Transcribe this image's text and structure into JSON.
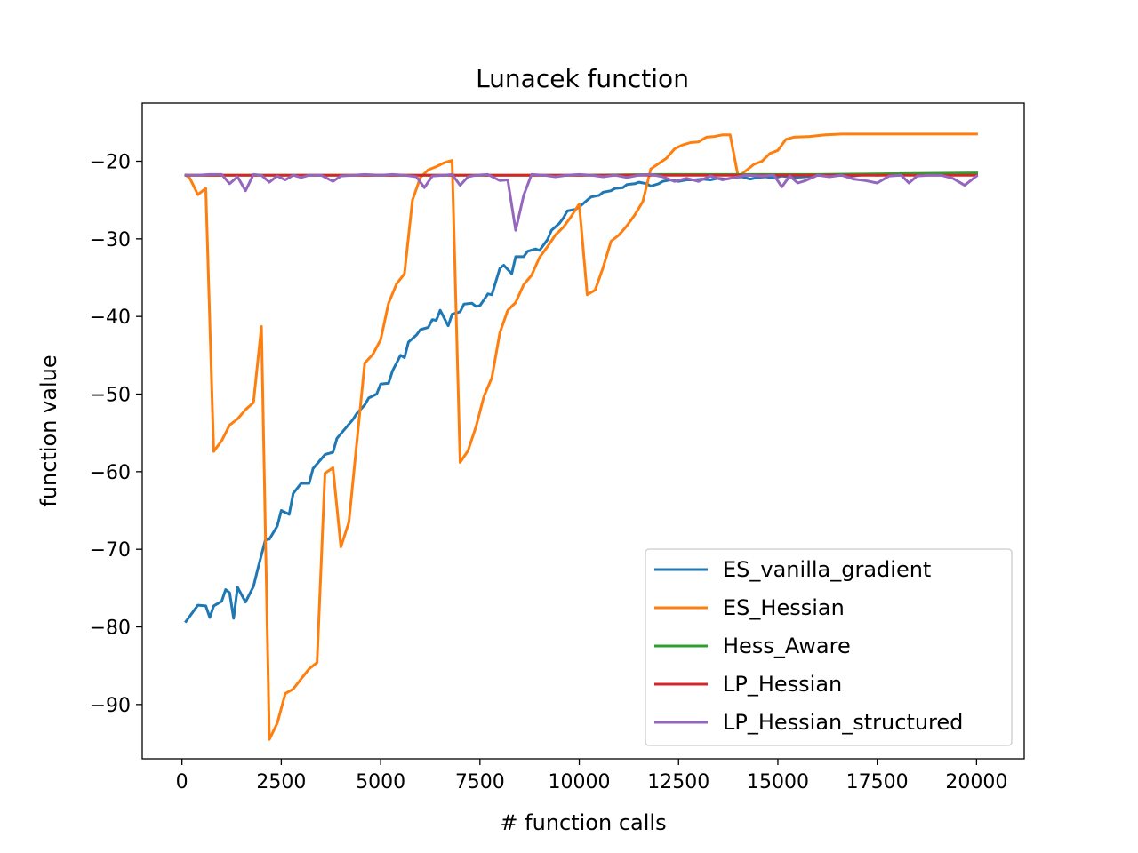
{
  "chart_data": {
    "type": "line",
    "title": "Lunacek function",
    "xlabel": "# function calls",
    "ylabel": "function value",
    "xlim": [
      -1000,
      21200
    ],
    "ylim": [
      -97,
      -12.5
    ],
    "xticks": [
      0,
      2500,
      5000,
      7500,
      10000,
      12500,
      15000,
      17500,
      20000
    ],
    "yticks": [
      -90,
      -80,
      -70,
      -60,
      -50,
      -40,
      -30,
      -20
    ],
    "x_tick_labels": [
      "0",
      "2500",
      "5000",
      "7500",
      "10000",
      "12500",
      "15000",
      "17500",
      "20000"
    ],
    "y_tick_labels": [
      "−90",
      "−80",
      "−70",
      "−60",
      "−50",
      "−40",
      "−30",
      "−20"
    ],
    "grid": false,
    "legend_position": "lower-right",
    "series": [
      {
        "name": "ES_vanilla_gradient",
        "color": "#1f77b4",
        "points": [
          [
            100,
            -79.3
          ],
          [
            400,
            -77.2
          ],
          [
            600,
            -77.3
          ],
          [
            700,
            -78.8
          ],
          [
            800,
            -77.3
          ],
          [
            1000,
            -76.7
          ],
          [
            1100,
            -75.2
          ],
          [
            1200,
            -75.6
          ],
          [
            1300,
            -78.9
          ],
          [
            1400,
            -74.9
          ],
          [
            1600,
            -76.8
          ],
          [
            1800,
            -74.8
          ],
          [
            1900,
            -72.7
          ],
          [
            2100,
            -68.8
          ],
          [
            2200,
            -68.7
          ],
          [
            2400,
            -67.0
          ],
          [
            2500,
            -65.0
          ],
          [
            2700,
            -65.5
          ],
          [
            2800,
            -62.8
          ],
          [
            3000,
            -61.5
          ],
          [
            3200,
            -61.5
          ],
          [
            3300,
            -59.6
          ],
          [
            3400,
            -59.0
          ],
          [
            3600,
            -57.8
          ],
          [
            3800,
            -57.5
          ],
          [
            3900,
            -55.7
          ],
          [
            4100,
            -54.5
          ],
          [
            4300,
            -53.3
          ],
          [
            4400,
            -52.5
          ],
          [
            4600,
            -51.4
          ],
          [
            4700,
            -50.5
          ],
          [
            4900,
            -50.0
          ],
          [
            5000,
            -48.7
          ],
          [
            5200,
            -48.6
          ],
          [
            5300,
            -47.0
          ],
          [
            5500,
            -45.0
          ],
          [
            5600,
            -45.3
          ],
          [
            5700,
            -43.3
          ],
          [
            5900,
            -42.4
          ],
          [
            6000,
            -41.7
          ],
          [
            6200,
            -41.4
          ],
          [
            6300,
            -40.4
          ],
          [
            6400,
            -40.5
          ],
          [
            6500,
            -39.2
          ],
          [
            6700,
            -41.2
          ],
          [
            6800,
            -39.7
          ],
          [
            7000,
            -39.4
          ],
          [
            7100,
            -38.4
          ],
          [
            7300,
            -38.3
          ],
          [
            7400,
            -38.7
          ],
          [
            7500,
            -38.6
          ],
          [
            7700,
            -37.1
          ],
          [
            7800,
            -37.2
          ],
          [
            8000,
            -33.8
          ],
          [
            8100,
            -33.4
          ],
          [
            8300,
            -34.5
          ],
          [
            8400,
            -32.3
          ],
          [
            8600,
            -32.3
          ],
          [
            8700,
            -31.6
          ],
          [
            8900,
            -31.3
          ],
          [
            9000,
            -31.5
          ],
          [
            9200,
            -30.1
          ],
          [
            9300,
            -28.9
          ],
          [
            9500,
            -28.0
          ],
          [
            9600,
            -27.3
          ],
          [
            9700,
            -26.4
          ],
          [
            9900,
            -26.2
          ],
          [
            10000,
            -25.9
          ],
          [
            10200,
            -25.0
          ],
          [
            10300,
            -24.6
          ],
          [
            10500,
            -24.4
          ],
          [
            10600,
            -24.0
          ],
          [
            10800,
            -23.8
          ],
          [
            10900,
            -23.5
          ],
          [
            11100,
            -23.4
          ],
          [
            11200,
            -23.0
          ],
          [
            11400,
            -22.9
          ],
          [
            11500,
            -22.7
          ],
          [
            11700,
            -22.9
          ],
          [
            11800,
            -23.2
          ],
          [
            12000,
            -22.9
          ],
          [
            12100,
            -22.6
          ],
          [
            12300,
            -22.4
          ],
          [
            12500,
            -22.6
          ],
          [
            12700,
            -22.4
          ],
          [
            12900,
            -22.4
          ],
          [
            13100,
            -22.3
          ],
          [
            13300,
            -22.4
          ],
          [
            13500,
            -22.2
          ],
          [
            13700,
            -22.3
          ],
          [
            13900,
            -22.1
          ],
          [
            14100,
            -22.0
          ],
          [
            14300,
            -22.3
          ],
          [
            14500,
            -22.1
          ],
          [
            14700,
            -22.0
          ],
          [
            14900,
            -22.2
          ],
          [
            15100,
            -21.9
          ],
          [
            15400,
            -22.1
          ],
          [
            15700,
            -22.0
          ],
          [
            16000,
            -21.8
          ],
          [
            16300,
            -21.9
          ],
          [
            16600,
            -21.8
          ],
          [
            16900,
            -21.9
          ],
          [
            17200,
            -21.7
          ],
          [
            17500,
            -21.8
          ],
          [
            17800,
            -21.7
          ],
          [
            18100,
            -21.7
          ],
          [
            18400,
            -21.7
          ],
          [
            18700,
            -21.6
          ],
          [
            19000,
            -21.7
          ],
          [
            19300,
            -21.6
          ],
          [
            19600,
            -21.6
          ],
          [
            20000,
            -21.6
          ]
        ]
      },
      {
        "name": "ES_Hessian",
        "color": "#ff7f0e",
        "points": [
          [
            100,
            -21.8
          ],
          [
            200,
            -22.2
          ],
          [
            400,
            -24.3
          ],
          [
            600,
            -23.5
          ],
          [
            800,
            -57.4
          ],
          [
            1000,
            -56.0
          ],
          [
            1200,
            -54.0
          ],
          [
            1400,
            -53.2
          ],
          [
            1600,
            -52.0
          ],
          [
            1800,
            -51.1
          ],
          [
            2000,
            -41.3
          ],
          [
            2200,
            -94.5
          ],
          [
            2400,
            -92.4
          ],
          [
            2600,
            -88.6
          ],
          [
            2800,
            -88.0
          ],
          [
            3000,
            -86.7
          ],
          [
            3200,
            -85.4
          ],
          [
            3400,
            -84.6
          ],
          [
            3600,
            -60.2
          ],
          [
            3800,
            -59.5
          ],
          [
            4000,
            -69.7
          ],
          [
            4200,
            -66.5
          ],
          [
            4600,
            -46.0
          ],
          [
            4800,
            -44.9
          ],
          [
            5000,
            -43.0
          ],
          [
            5200,
            -38.3
          ],
          [
            5400,
            -35.8
          ],
          [
            5600,
            -34.5
          ],
          [
            5800,
            -25.0
          ],
          [
            6000,
            -22.1
          ],
          [
            6200,
            -21.1
          ],
          [
            6400,
            -20.7
          ],
          [
            6600,
            -20.2
          ],
          [
            6800,
            -19.9
          ],
          [
            7000,
            -58.8
          ],
          [
            7200,
            -57.3
          ],
          [
            7400,
            -54.2
          ],
          [
            7600,
            -50.3
          ],
          [
            7800,
            -47.9
          ],
          [
            8000,
            -42.1
          ],
          [
            8200,
            -39.2
          ],
          [
            8400,
            -38.2
          ],
          [
            8600,
            -35.9
          ],
          [
            8800,
            -34.7
          ],
          [
            9000,
            -32.4
          ],
          [
            9200,
            -31.0
          ],
          [
            9400,
            -29.5
          ],
          [
            9600,
            -28.5
          ],
          [
            9800,
            -27.1
          ],
          [
            10000,
            -25.5
          ],
          [
            10200,
            -37.2
          ],
          [
            10400,
            -36.6
          ],
          [
            10600,
            -33.7
          ],
          [
            10800,
            -30.3
          ],
          [
            11000,
            -29.5
          ],
          [
            11200,
            -28.3
          ],
          [
            11400,
            -26.9
          ],
          [
            11600,
            -25.2
          ],
          [
            11800,
            -21.0
          ],
          [
            12000,
            -20.3
          ],
          [
            12200,
            -19.6
          ],
          [
            12400,
            -18.4
          ],
          [
            12600,
            -17.9
          ],
          [
            12800,
            -17.6
          ],
          [
            13000,
            -17.5
          ],
          [
            13200,
            -16.9
          ],
          [
            13400,
            -16.8
          ],
          [
            13600,
            -16.6
          ],
          [
            13800,
            -16.6
          ],
          [
            14000,
            -22.0
          ],
          [
            14200,
            -21.2
          ],
          [
            14400,
            -20.4
          ],
          [
            14600,
            -20.0
          ],
          [
            14800,
            -19.0
          ],
          [
            15000,
            -18.6
          ],
          [
            15200,
            -17.2
          ],
          [
            15400,
            -16.9
          ],
          [
            15800,
            -16.8
          ],
          [
            16200,
            -16.6
          ],
          [
            16600,
            -16.5
          ],
          [
            17000,
            -16.5
          ],
          [
            17500,
            -16.5
          ],
          [
            18000,
            -16.5
          ],
          [
            18500,
            -16.5
          ],
          [
            19000,
            -16.5
          ],
          [
            19500,
            -16.5
          ],
          [
            20000,
            -16.5
          ]
        ]
      },
      {
        "name": "Hess_Aware",
        "color": "#2ca02c",
        "points": [
          [
            100,
            -21.8
          ],
          [
            2000,
            -21.8
          ],
          [
            4000,
            -21.8
          ],
          [
            6000,
            -21.8
          ],
          [
            8000,
            -21.8
          ],
          [
            10000,
            -21.8
          ],
          [
            12000,
            -21.7
          ],
          [
            14000,
            -21.7
          ],
          [
            16000,
            -21.7
          ],
          [
            18000,
            -21.6
          ],
          [
            20000,
            -21.5
          ]
        ]
      },
      {
        "name": "LP_Hessian",
        "color": "#d62728",
        "points": [
          [
            100,
            -21.8
          ],
          [
            2000,
            -21.8
          ],
          [
            4000,
            -21.8
          ],
          [
            6000,
            -21.8
          ],
          [
            8000,
            -21.8
          ],
          [
            10000,
            -21.8
          ],
          [
            12000,
            -21.8
          ],
          [
            14000,
            -21.8
          ],
          [
            16000,
            -21.8
          ],
          [
            18000,
            -21.8
          ],
          [
            20000,
            -21.8
          ]
        ]
      },
      {
        "name": "LP_Hessian_structured",
        "color": "#9467bd",
        "points": [
          [
            100,
            -21.8
          ],
          [
            400,
            -21.8
          ],
          [
            700,
            -21.7
          ],
          [
            1000,
            -21.7
          ],
          [
            1200,
            -22.9
          ],
          [
            1400,
            -22.0
          ],
          [
            1600,
            -23.8
          ],
          [
            1800,
            -21.7
          ],
          [
            2000,
            -21.8
          ],
          [
            2200,
            -22.7
          ],
          [
            2400,
            -21.9
          ],
          [
            2600,
            -22.4
          ],
          [
            2800,
            -21.8
          ],
          [
            3000,
            -22.1
          ],
          [
            3200,
            -21.8
          ],
          [
            3500,
            -21.8
          ],
          [
            3800,
            -22.6
          ],
          [
            4000,
            -21.9
          ],
          [
            4300,
            -21.8
          ],
          [
            4600,
            -21.7
          ],
          [
            5000,
            -21.8
          ],
          [
            5300,
            -21.7
          ],
          [
            5600,
            -21.8
          ],
          [
            5900,
            -22.0
          ],
          [
            6100,
            -23.4
          ],
          [
            6300,
            -21.9
          ],
          [
            6600,
            -21.8
          ],
          [
            6800,
            -21.7
          ],
          [
            7000,
            -23.1
          ],
          [
            7200,
            -22.0
          ],
          [
            7400,
            -21.8
          ],
          [
            7700,
            -21.7
          ],
          [
            8000,
            -22.5
          ],
          [
            8200,
            -22.4
          ],
          [
            8400,
            -28.9
          ],
          [
            8600,
            -24.4
          ],
          [
            8800,
            -21.7
          ],
          [
            9100,
            -21.8
          ],
          [
            9400,
            -22.0
          ],
          [
            9700,
            -21.8
          ],
          [
            10000,
            -21.7
          ],
          [
            10300,
            -21.8
          ],
          [
            10600,
            -22.0
          ],
          [
            10900,
            -21.8
          ],
          [
            11200,
            -22.1
          ],
          [
            11500,
            -21.8
          ],
          [
            11800,
            -21.7
          ],
          [
            12100,
            -22.0
          ],
          [
            12400,
            -22.6
          ],
          [
            12700,
            -22.2
          ],
          [
            13000,
            -22.6
          ],
          [
            13300,
            -21.9
          ],
          [
            13600,
            -22.4
          ],
          [
            13900,
            -22.1
          ],
          [
            14200,
            -21.8
          ],
          [
            14600,
            -21.9
          ],
          [
            14900,
            -21.8
          ],
          [
            15100,
            -23.3
          ],
          [
            15300,
            -21.9
          ],
          [
            15500,
            -22.8
          ],
          [
            15700,
            -22.5
          ],
          [
            16000,
            -21.8
          ],
          [
            16300,
            -22.0
          ],
          [
            16600,
            -21.8
          ],
          [
            16900,
            -22.3
          ],
          [
            17200,
            -22.5
          ],
          [
            17500,
            -22.8
          ],
          [
            17800,
            -21.9
          ],
          [
            18100,
            -21.8
          ],
          [
            18300,
            -22.8
          ],
          [
            18500,
            -21.9
          ],
          [
            18800,
            -21.8
          ],
          [
            19100,
            -21.8
          ],
          [
            19400,
            -22.2
          ],
          [
            19700,
            -23.1
          ],
          [
            20000,
            -21.9
          ]
        ]
      }
    ]
  }
}
